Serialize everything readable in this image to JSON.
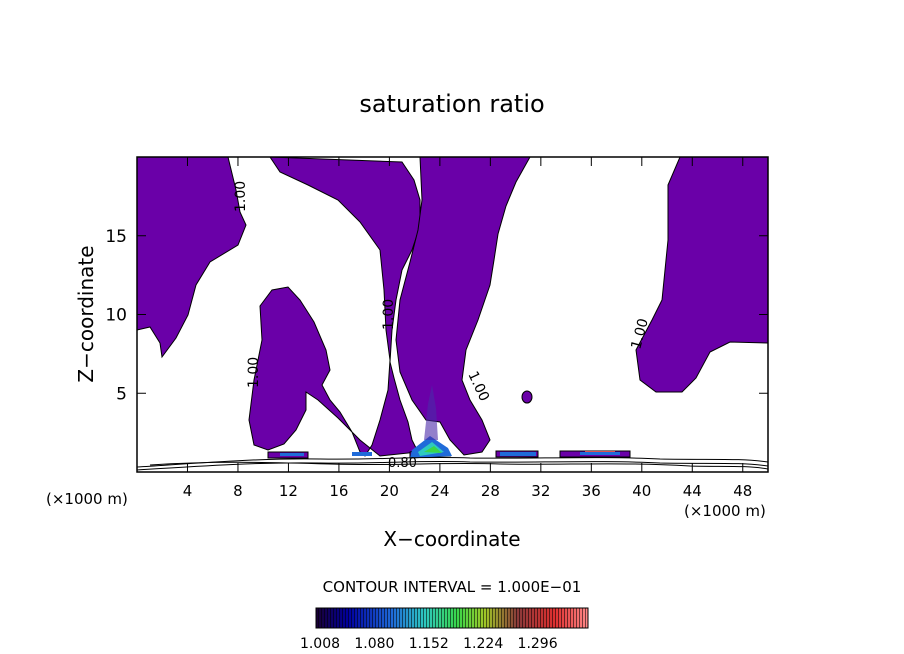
{
  "chart_data": {
    "type": "contour",
    "title": "saturation ratio",
    "xlabel": "X−coordinate",
    "ylabel": "Z−coordinate",
    "x_units_left": "(×1000 m)",
    "x_units_right": "(×1000 m)",
    "xlim": [
      0,
      50
    ],
    "ylim": [
      0,
      20
    ],
    "x_ticks": [
      4,
      8,
      12,
      16,
      20,
      24,
      28,
      32,
      36,
      40,
      44,
      48
    ],
    "x_tick_labels": [
      "4",
      "8",
      "12",
      "16",
      "20",
      "24",
      "28",
      "32",
      "36",
      "40",
      "44",
      "48"
    ],
    "y_ticks": [
      5,
      10,
      15
    ],
    "y_tick_labels": [
      "5",
      "10",
      "15"
    ],
    "contour_labels": [
      {
        "text": "1.00",
        "x": 8.5,
        "y": 16.5,
        "angle": -90
      },
      {
        "text": "1.00",
        "x": 20.5,
        "y": 10.3,
        "angle": -90
      },
      {
        "text": "1.00",
        "x": 9.5,
        "y": 6.2,
        "angle": -90
      },
      {
        "text": "1.00",
        "x": 26.5,
        "y": 5.2,
        "angle": -65
      },
      {
        "text": "1.00",
        "x": 40.0,
        "y": 8.5,
        "angle": -75
      },
      {
        "text": "0.80",
        "x": 21.5,
        "y": 0.8,
        "angle": 0
      }
    ],
    "contour_interval_text": "CONTOUR INTERVAL = 1.000E−01",
    "colorbar_labels": [
      "1.008",
      "1.080",
      "1.152",
      "1.224",
      "1.296"
    ],
    "colorbar_range": [
      1.008,
      1.3
    ],
    "colors": {
      "supersaturated_fill": "#6a00a8",
      "colorbar_stops": [
        "#1a0033",
        "#0000a0",
        "#1f6bd9",
        "#2ec9c0",
        "#3ad64a",
        "#a0c828",
        "#c84040",
        "#e03030",
        "#ff8080"
      ]
    }
  }
}
